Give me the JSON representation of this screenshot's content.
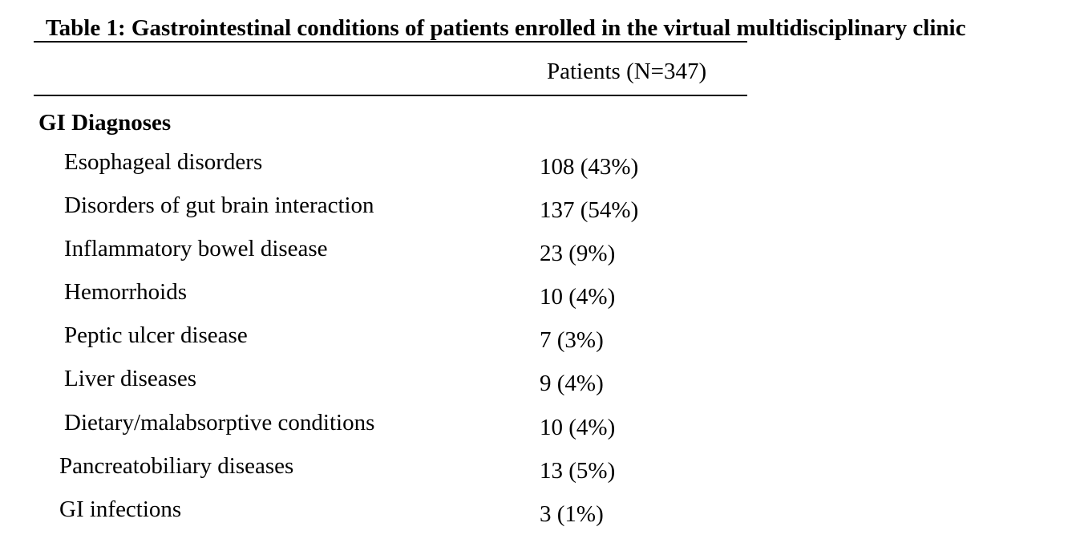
{
  "table": {
    "caption": "Table 1: Gastrointestinal conditions of patients enrolled in the virtual multidisciplinary clinic",
    "column_header": "Patients (N=347)",
    "section_title": "GI Diagnoses",
    "rows": [
      {
        "label": "Esophageal disorders",
        "value": "108 (43%)"
      },
      {
        "label": "Disorders of gut brain interaction",
        "value": "137 (54%)"
      },
      {
        "label": "Inflammatory bowel disease",
        "value": "23 (9%)"
      },
      {
        "label": "Hemorrhoids",
        "value": "10 (4%)"
      },
      {
        "label": "Peptic ulcer disease",
        "value": "7 (3%)"
      },
      {
        "label": "Liver diseases",
        "value": "9 (4%)"
      },
      {
        "label": "Dietary/malabsorptive conditions",
        "value": "10 (4%)"
      },
      {
        "label": "Pancreatobiliary diseases",
        "value": "13 (5%)"
      },
      {
        "label": "GI infections",
        "value": "3 (1%)"
      }
    ]
  }
}
